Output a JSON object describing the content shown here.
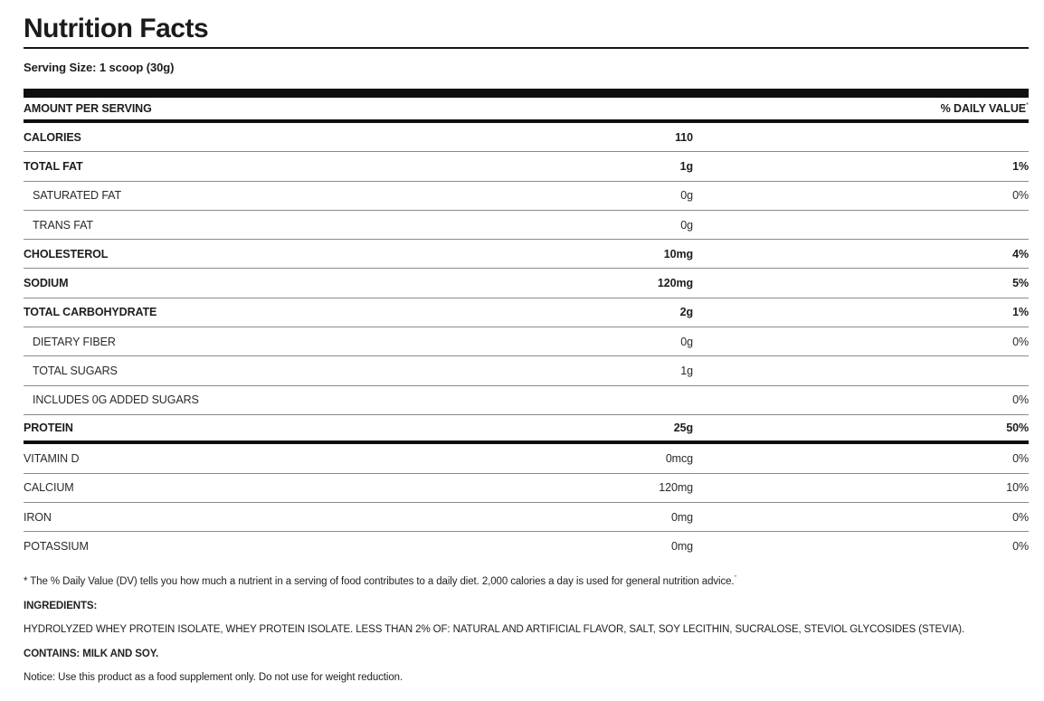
{
  "colors": {
    "text": "#1d1d1d",
    "bar": "#0f0f0f",
    "separator": "#8c8c8c",
    "background": "#ffffff"
  },
  "header": {
    "title": "Nutrition Facts",
    "serving_size": "Serving Size: 1 scoop (30g)"
  },
  "table": {
    "column_headers": {
      "left": "AMOUNT PER SERVING",
      "right": "% DAILY VALUE",
      "right_mark": "*"
    },
    "rows": [
      {
        "label": "CALORIES",
        "amount": "110",
        "dv": "",
        "style": "bold"
      },
      {
        "label": "TOTAL FAT",
        "amount": "1g",
        "dv": "1%",
        "style": "bold"
      },
      {
        "label": "SATURATED FAT",
        "amount": "0g",
        "dv": "0%",
        "style": "sub"
      },
      {
        "label": "TRANS FAT",
        "amount": "0g",
        "dv": "",
        "style": "sub"
      },
      {
        "label": "CHOLESTEROL",
        "amount": "10mg",
        "dv": "4%",
        "style": "bold"
      },
      {
        "label": "SODIUM",
        "amount": "120mg",
        "dv": "5%",
        "style": "bold"
      },
      {
        "label": "TOTAL CARBOHYDRATE",
        "amount": "2g",
        "dv": "1%",
        "style": "bold"
      },
      {
        "label": "DIETARY FIBER",
        "amount": "0g",
        "dv": "0%",
        "style": "sub"
      },
      {
        "label": "TOTAL SUGARS",
        "amount": "1g",
        "dv": "",
        "style": "sub"
      },
      {
        "label": "INCLUDES 0G ADDED SUGARS",
        "amount": "",
        "dv": "0%",
        "style": "sub"
      },
      {
        "label": "PROTEIN",
        "amount": "25g",
        "dv": "50%",
        "style": "bold",
        "divider_after": "thick"
      },
      {
        "label": "VITAMIN D",
        "amount": "0mcg",
        "dv": "0%",
        "style": "micro"
      },
      {
        "label": "CALCIUM",
        "amount": "120mg",
        "dv": "10%",
        "style": "micro"
      },
      {
        "label": "IRON",
        "amount": "0mg",
        "dv": "0%",
        "style": "micro"
      },
      {
        "label": "POTASSIUM",
        "amount": "0mg",
        "dv": "0%",
        "style": "micro",
        "divider_after": "none"
      }
    ]
  },
  "footer": {
    "daily_value_note": "* The % Daily Value (DV) tells you how much a nutrient in a serving of food contributes to a daily diet. 2,000 calories a day is used for general nutrition advice.",
    "daily_value_note_mark": "”",
    "ingredients_label": "INGREDIENTS:",
    "ingredients": "HYDROLYZED WHEY PROTEIN ISOLATE, WHEY PROTEIN ISOLATE. LESS THAN 2% OF: NATURAL AND ARTIFICIAL FLAVOR, SALT, SOY LECITHIN, SUCRALOSE, STEVIOL GLYCOSIDES (STEVIA).",
    "contains": "CONTAINS: MILK AND SOY.",
    "notice": "Notice: Use this product as a food supplement only. Do not use for weight reduction."
  }
}
